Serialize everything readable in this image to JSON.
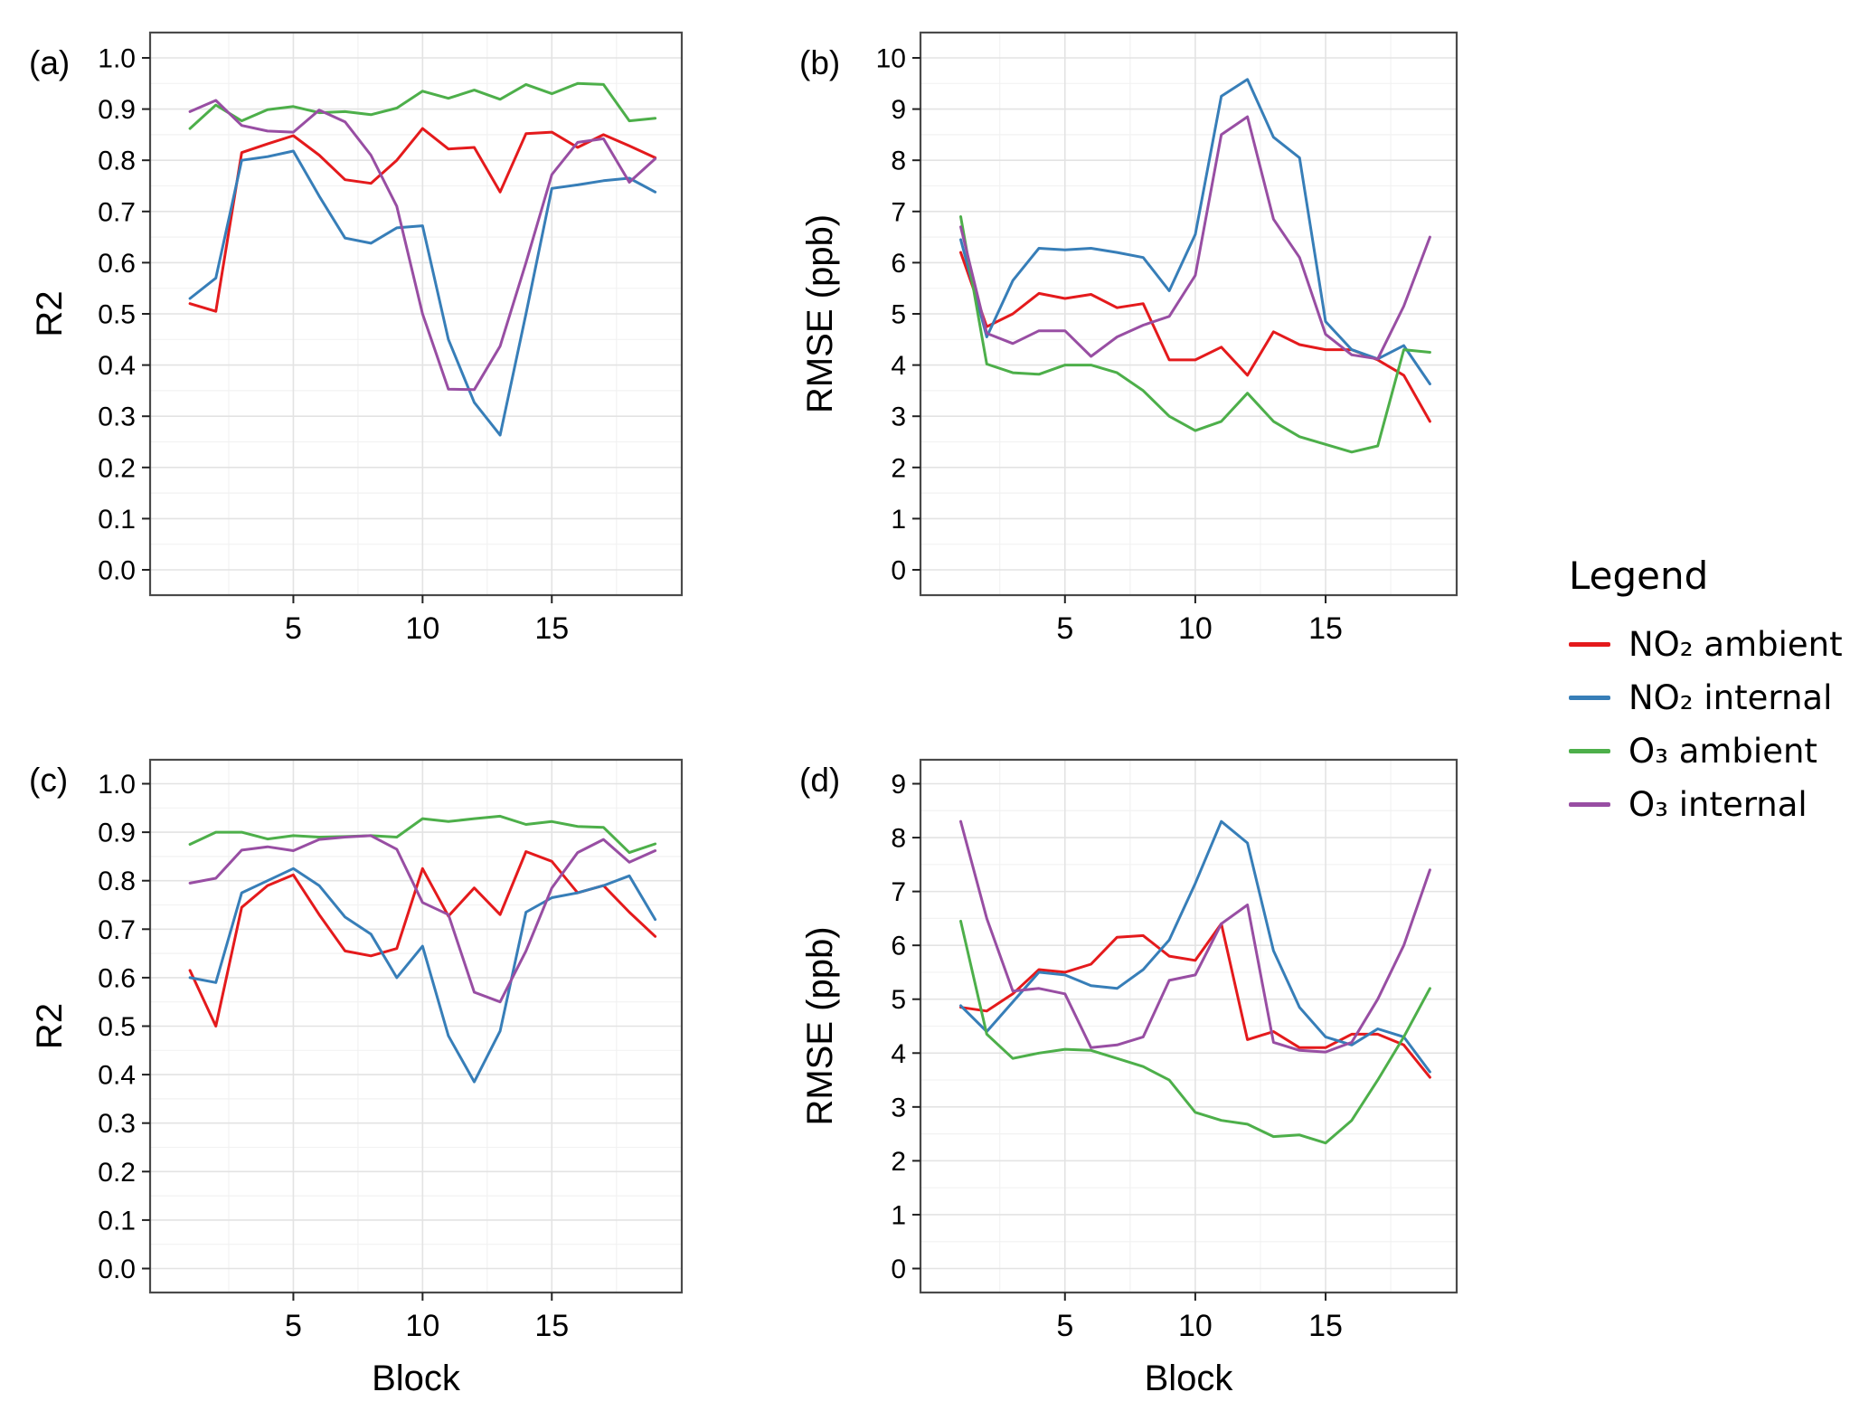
{
  "colors": {
    "no2_ambient": "#E41A1C",
    "no2_internal": "#377EB8",
    "o3_ambient": "#4DAF4A",
    "o3_internal": "#984EA3",
    "grid_major": "#e3e3e3",
    "grid_minor": "#f2f2f2",
    "panel_border": "#4a4a4a",
    "tick": "#222222"
  },
  "legend": {
    "title": "Legend",
    "entries": [
      {
        "label": "NO₂ ambient",
        "color_key": "no2_ambient"
      },
      {
        "label": "NO₂ internal",
        "color_key": "no2_internal"
      },
      {
        "label": "O₃ ambient",
        "color_key": "o3_ambient"
      },
      {
        "label": "O₃ internal",
        "color_key": "o3_internal"
      }
    ],
    "position": "right-outer"
  },
  "chart_data": [
    {
      "panel_label": "(a)",
      "type": "line",
      "title": "",
      "xlabel": "",
      "ylabel": "R2",
      "x": [
        1,
        2,
        3,
        4,
        5,
        6,
        7,
        8,
        9,
        10,
        11,
        12,
        13,
        14,
        15,
        16,
        17,
        18,
        19
      ],
      "xticks": [
        5,
        10,
        15
      ],
      "xminor": [
        2.5,
        7.5,
        12.5,
        17.5
      ],
      "ylim": [
        0,
        1
      ],
      "yticks": [
        0,
        0.1,
        0.2,
        0.3,
        0.4,
        0.5,
        0.6,
        0.7,
        0.8,
        0.9,
        1
      ],
      "ytick_decimals": 1,
      "grid": true,
      "series": [
        {
          "name": "NO₂ ambient",
          "color_key": "no2_ambient",
          "values": [
            0.52,
            0.505,
            0.815,
            0.832,
            0.848,
            0.81,
            0.762,
            0.755,
            0.8,
            0.862,
            0.822,
            0.825,
            0.738,
            0.852,
            0.855,
            0.825,
            0.85,
            0.828,
            0.805
          ]
        },
        {
          "name": "NO₂ internal",
          "color_key": "no2_internal",
          "values": [
            0.53,
            0.57,
            0.8,
            0.807,
            0.818,
            0.73,
            0.648,
            0.638,
            0.668,
            0.672,
            0.45,
            0.327,
            0.263,
            0.5,
            0.745,
            0.752,
            0.76,
            0.765,
            0.738
          ]
        },
        {
          "name": "O₃ ambient",
          "color_key": "o3_ambient",
          "values": [
            0.862,
            0.908,
            0.877,
            0.899,
            0.905,
            0.893,
            0.895,
            0.889,
            0.902,
            0.935,
            0.921,
            0.937,
            0.919,
            0.948,
            0.93,
            0.95,
            0.948,
            0.877,
            0.882
          ]
        },
        {
          "name": "O₃ internal",
          "color_key": "o3_internal",
          "values": [
            0.895,
            0.917,
            0.868,
            0.857,
            0.855,
            0.898,
            0.875,
            0.81,
            0.71,
            0.5,
            0.353,
            0.352,
            0.437,
            0.6,
            0.772,
            0.835,
            0.842,
            0.757,
            0.803
          ]
        }
      ]
    },
    {
      "panel_label": "(b)",
      "type": "line",
      "title": "",
      "xlabel": "",
      "ylabel": "RMSE (ppb)",
      "x": [
        1,
        2,
        3,
        4,
        5,
        6,
        7,
        8,
        9,
        10,
        11,
        12,
        13,
        14,
        15,
        16,
        17,
        18,
        19
      ],
      "xticks": [
        5,
        10,
        15
      ],
      "xminor": [
        2.5,
        7.5,
        12.5,
        17.5
      ],
      "ylim": [
        0,
        10
      ],
      "yticks": [
        0,
        1,
        2,
        3,
        4,
        5,
        6,
        7,
        8,
        9,
        10
      ],
      "ytick_decimals": 0,
      "grid": true,
      "series": [
        {
          "name": "NO₂ ambient",
          "color_key": "no2_ambient",
          "values": [
            6.2,
            4.75,
            5.0,
            5.4,
            5.3,
            5.38,
            5.12,
            5.2,
            4.1,
            4.1,
            4.35,
            3.8,
            4.65,
            4.4,
            4.3,
            4.3,
            4.1,
            3.8,
            2.9
          ]
        },
        {
          "name": "NO₂ internal",
          "color_key": "no2_internal",
          "values": [
            6.45,
            4.55,
            5.65,
            6.28,
            6.25,
            6.28,
            6.2,
            6.1,
            5.45,
            6.55,
            9.25,
            9.58,
            8.45,
            8.05,
            4.85,
            4.3,
            4.12,
            4.38,
            3.63
          ]
        },
        {
          "name": "O₃ ambient",
          "color_key": "o3_ambient",
          "values": [
            6.9,
            4.02,
            3.85,
            3.82,
            4.0,
            4.0,
            3.85,
            3.5,
            3.0,
            2.72,
            2.9,
            3.45,
            2.9,
            2.6,
            2.45,
            2.3,
            2.42,
            4.3,
            4.25
          ]
        },
        {
          "name": "O₃ internal",
          "color_key": "o3_internal",
          "values": [
            6.7,
            4.62,
            4.42,
            4.67,
            4.67,
            4.17,
            4.55,
            4.78,
            4.95,
            5.75,
            8.5,
            8.85,
            6.85,
            6.1,
            4.6,
            4.2,
            4.12,
            5.15,
            6.5
          ]
        }
      ]
    },
    {
      "panel_label": "(c)",
      "type": "line",
      "title": "",
      "xlabel": "Block",
      "ylabel": "R2",
      "x": [
        1,
        2,
        3,
        4,
        5,
        6,
        7,
        8,
        9,
        10,
        11,
        12,
        13,
        14,
        15,
        16,
        17,
        18,
        19
      ],
      "xticks": [
        5,
        10,
        15
      ],
      "xminor": [
        2.5,
        7.5,
        12.5,
        17.5
      ],
      "ylim": [
        0,
        1
      ],
      "yticks": [
        0,
        0.1,
        0.2,
        0.3,
        0.4,
        0.5,
        0.6,
        0.7,
        0.8,
        0.9,
        1
      ],
      "ytick_decimals": 1,
      "grid": true,
      "series": [
        {
          "name": "NO₂ ambient",
          "color_key": "no2_ambient",
          "values": [
            0.615,
            0.5,
            0.745,
            0.79,
            0.812,
            0.73,
            0.655,
            0.645,
            0.66,
            0.825,
            0.727,
            0.785,
            0.73,
            0.86,
            0.84,
            0.775,
            0.79,
            0.735,
            0.685
          ]
        },
        {
          "name": "NO₂ internal",
          "color_key": "no2_internal",
          "values": [
            0.6,
            0.59,
            0.775,
            0.8,
            0.825,
            0.79,
            0.725,
            0.69,
            0.6,
            0.665,
            0.48,
            0.385,
            0.49,
            0.735,
            0.765,
            0.775,
            0.79,
            0.81,
            0.72
          ]
        },
        {
          "name": "O₃ ambient",
          "color_key": "o3_ambient",
          "values": [
            0.875,
            0.9,
            0.9,
            0.886,
            0.893,
            0.89,
            0.891,
            0.893,
            0.89,
            0.928,
            0.922,
            0.928,
            0.933,
            0.916,
            0.922,
            0.912,
            0.91,
            0.858,
            0.876
          ]
        },
        {
          "name": "O₃ internal",
          "color_key": "o3_internal",
          "values": [
            0.795,
            0.805,
            0.863,
            0.87,
            0.862,
            0.885,
            0.89,
            0.893,
            0.865,
            0.755,
            0.73,
            0.57,
            0.55,
            0.655,
            0.785,
            0.858,
            0.885,
            0.838,
            0.862
          ]
        }
      ]
    },
    {
      "panel_label": "(d)",
      "type": "line",
      "title": "",
      "xlabel": "Block",
      "ylabel": "RMSE (ppb)",
      "x": [
        1,
        2,
        3,
        4,
        5,
        6,
        7,
        8,
        9,
        10,
        11,
        12,
        13,
        14,
        15,
        16,
        17,
        18,
        19
      ],
      "xticks": [
        5,
        10,
        15
      ],
      "xminor": [
        2.5,
        7.5,
        12.5,
        17.5
      ],
      "ylim": [
        0,
        9
      ],
      "yticks": [
        0,
        1,
        2,
        3,
        4,
        5,
        6,
        7,
        8,
        9
      ],
      "ytick_decimals": 0,
      "grid": true,
      "series": [
        {
          "name": "NO₂ ambient",
          "color_key": "no2_ambient",
          "values": [
            4.85,
            4.78,
            5.1,
            5.55,
            5.5,
            5.65,
            6.15,
            6.18,
            5.8,
            5.72,
            6.4,
            4.25,
            4.4,
            4.1,
            4.1,
            4.35,
            4.35,
            4.15,
            3.55
          ]
        },
        {
          "name": "NO₂ internal",
          "color_key": "no2_internal",
          "values": [
            4.88,
            4.4,
            4.95,
            5.5,
            5.45,
            5.25,
            5.2,
            5.55,
            6.1,
            7.15,
            8.3,
            7.9,
            5.9,
            4.85,
            4.3,
            4.15,
            4.45,
            4.3,
            3.65
          ]
        },
        {
          "name": "O₃ ambient",
          "color_key": "o3_ambient",
          "values": [
            6.45,
            4.35,
            3.9,
            4.0,
            4.07,
            4.05,
            3.9,
            3.75,
            3.5,
            2.9,
            2.75,
            2.68,
            2.45,
            2.48,
            2.33,
            2.75,
            3.5,
            4.3,
            5.2
          ]
        },
        {
          "name": "O₃ internal",
          "color_key": "o3_internal",
          "values": [
            8.3,
            6.5,
            5.15,
            5.2,
            5.1,
            4.1,
            4.15,
            4.3,
            5.35,
            5.45,
            6.4,
            6.75,
            4.2,
            4.05,
            4.02,
            4.2,
            5.0,
            6.0,
            7.4
          ]
        }
      ]
    }
  ]
}
